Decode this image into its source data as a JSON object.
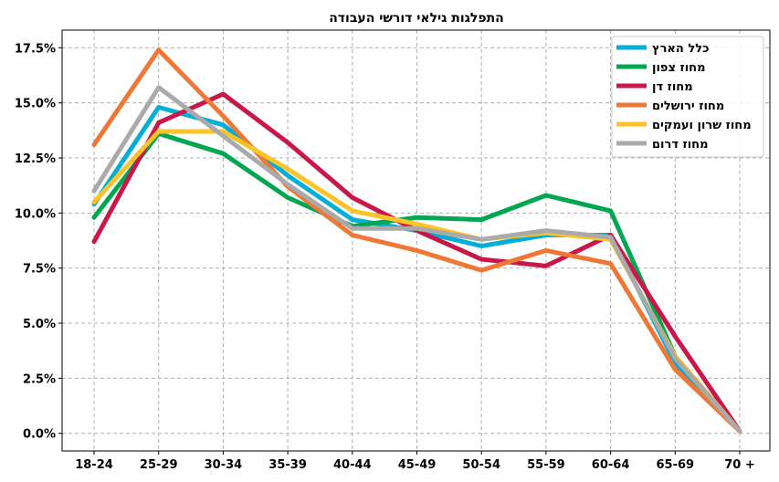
{
  "chart_data": {
    "type": "line",
    "title": "התפלגות גילאי דורשי העבודה",
    "xlabel": "",
    "ylabel": "",
    "categories": [
      "18-24",
      "25-29",
      "30-34",
      "35-39",
      "40-44",
      "45-49",
      "50-54",
      "55-59",
      "60-64",
      "65-69",
      "70 +"
    ],
    "yticks": [
      "0.0%",
      "2.5%",
      "5.0%",
      "7.5%",
      "10.0%",
      "12.5%",
      "15.0%",
      "17.5%"
    ],
    "ylim": [
      -0.8,
      18.3
    ],
    "grid": true,
    "legend_position": "top-right",
    "series": [
      {
        "name": "כלל הארץ",
        "color": "#00aed6",
        "values": [
          10.4,
          14.8,
          14.0,
          11.7,
          9.7,
          9.2,
          8.5,
          9.0,
          9.0,
          3.2,
          0.1
        ]
      },
      {
        "name": "מחוז צפון",
        "color": "#00a651",
        "values": [
          9.8,
          13.6,
          12.7,
          10.7,
          9.4,
          9.8,
          9.7,
          10.8,
          10.1,
          3.5,
          0.1
        ]
      },
      {
        "name": "מחוז דן",
        "color": "#c8174b",
        "values": [
          8.7,
          14.1,
          15.4,
          13.2,
          10.7,
          9.2,
          7.9,
          7.6,
          9.0,
          4.4,
          0.1
        ]
      },
      {
        "name": "מחוז ירושלים",
        "color": "#ef7836",
        "values": [
          13.1,
          17.4,
          14.4,
          11.2,
          9.0,
          8.3,
          7.4,
          8.3,
          7.7,
          2.9,
          0.1
        ]
      },
      {
        "name": "מחוז שרון ועמקים",
        "color": "#fcc429",
        "values": [
          10.5,
          13.7,
          13.7,
          12.0,
          10.1,
          9.5,
          8.8,
          9.1,
          8.8,
          3.5,
          0.1
        ]
      },
      {
        "name": "מחוז דרום",
        "color": "#aaaaaa",
        "values": [
          11.0,
          15.7,
          13.5,
          11.3,
          9.3,
          9.3,
          8.8,
          9.2,
          8.9,
          3.4,
          0.1
        ]
      }
    ]
  }
}
